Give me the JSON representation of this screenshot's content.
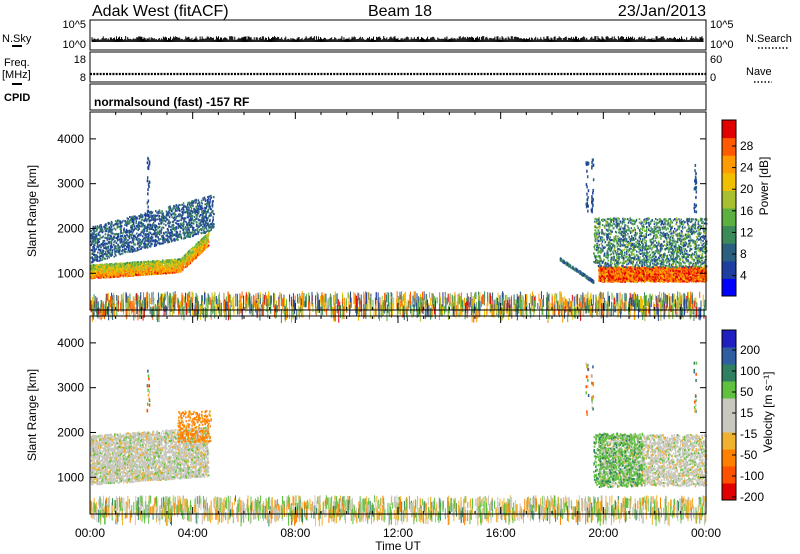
{
  "header": {
    "station": "Adak West (fitACF)",
    "beam": "Beam 18",
    "date": "23/Jan/2013"
  },
  "top_panels": {
    "nsky_label": "N.Sky",
    "nsky_ticks": [
      "10^5",
      "10^0"
    ],
    "nsearch_label": "N.Search",
    "nsearch_ticks": [
      "10^5",
      "10^0"
    ],
    "freq_label": "Freq.",
    "freq_unit": "[MHz]",
    "freq_ticks": [
      "18",
      "8"
    ],
    "nave_label": "Nave",
    "nave_ticks": [
      "60",
      "0"
    ],
    "cpid_label": "CPID",
    "cpid_text": "normalsound (fast) -157 RF"
  },
  "axes": {
    "x_ticks": [
      "00:00",
      "04:00",
      "08:00",
      "12:00",
      "16:00",
      "20:00",
      "00:00"
    ],
    "x_label": "Time UT",
    "y_label": "Slant Range [km]",
    "y_ticks": [
      "4000",
      "3000",
      "2000",
      "1000"
    ]
  },
  "colorbars": {
    "power": {
      "label": "Power [dB]",
      "ticks": [
        "28",
        "24",
        "20",
        "16",
        "12",
        "8",
        "4"
      ],
      "colors": [
        "#0000ff",
        "#1f3fa0",
        "#2b5f80",
        "#3a8a5a",
        "#5cb040",
        "#a8c030",
        "#f0c000",
        "#ff9a00",
        "#ff5a00",
        "#e00000"
      ]
    },
    "velocity": {
      "label": "Velocity [m s⁻¹]",
      "ticks": [
        "200",
        "100",
        "50",
        "15",
        "-15",
        "-50",
        "-100",
        "-200"
      ],
      "colors": [
        "#2020c0",
        "#2f5fa0",
        "#2f8060",
        "#60c040",
        "#c8c8c0",
        "#c8c8c0",
        "#f0b030",
        "#ff8000",
        "#ff5000",
        "#e00000"
      ]
    }
  },
  "chart_data": [
    {
      "type": "heatmap",
      "title": "Power",
      "xlabel": "Time UT",
      "ylabel": "Slant Range [km]",
      "xlim_hours": [
        0,
        24
      ],
      "ylim_km": [
        180,
        4600
      ],
      "colorbar_range_db": [
        0,
        30
      ],
      "features": [
        {
          "region": "early band",
          "t_hours": [
            0.0,
            4.6
          ],
          "range_km": [
            850,
            1250
          ],
          "power_db": 26
        },
        {
          "region": "early upper scatter",
          "t_hours": [
            0.0,
            4.8
          ],
          "range_km": [
            1250,
            2400
          ],
          "power_db": 6
        },
        {
          "region": "late band",
          "t_hours": [
            19.7,
            24.0
          ],
          "range_km": [
            800,
            1200
          ],
          "power_db": 27
        },
        {
          "region": "late upper scatter",
          "t_hours": [
            19.5,
            24.0
          ],
          "range_km": [
            1200,
            2200
          ],
          "power_db": 7
        },
        {
          "region": "ground clutter",
          "t_hours": [
            0.0,
            24.0
          ],
          "range_km": [
            200,
            600
          ],
          "power_db": 14
        }
      ]
    },
    {
      "type": "heatmap",
      "title": "Velocity",
      "xlabel": "Time UT",
      "ylabel": "Slant Range [km]",
      "xlim_hours": [
        0,
        24
      ],
      "ylim_km": [
        180,
        4600
      ],
      "colorbar_range_ms": [
        -250,
        250
      ],
      "features": [
        {
          "region": "early band",
          "t_hours": [
            0.0,
            4.6
          ],
          "range_km": [
            850,
            1900
          ],
          "velocity_ms": 0
        },
        {
          "region": "early upper scatter",
          "t_hours": [
            3.5,
            4.6
          ],
          "range_km": [
            1800,
            2500
          ],
          "velocity_ms": -60
        },
        {
          "region": "late band",
          "t_hours": [
            19.7,
            24.0
          ],
          "range_km": [
            800,
            1250
          ],
          "velocity_ms": 0
        },
        {
          "region": "late onset",
          "t_hours": [
            19.6,
            21.5
          ],
          "range_km": [
            800,
            2000
          ],
          "velocity_ms": 30
        },
        {
          "region": "ground clutter",
          "t_hours": [
            0.0,
            24.0
          ],
          "range_km": [
            200,
            600
          ],
          "velocity_ms": 0
        }
      ]
    }
  ]
}
